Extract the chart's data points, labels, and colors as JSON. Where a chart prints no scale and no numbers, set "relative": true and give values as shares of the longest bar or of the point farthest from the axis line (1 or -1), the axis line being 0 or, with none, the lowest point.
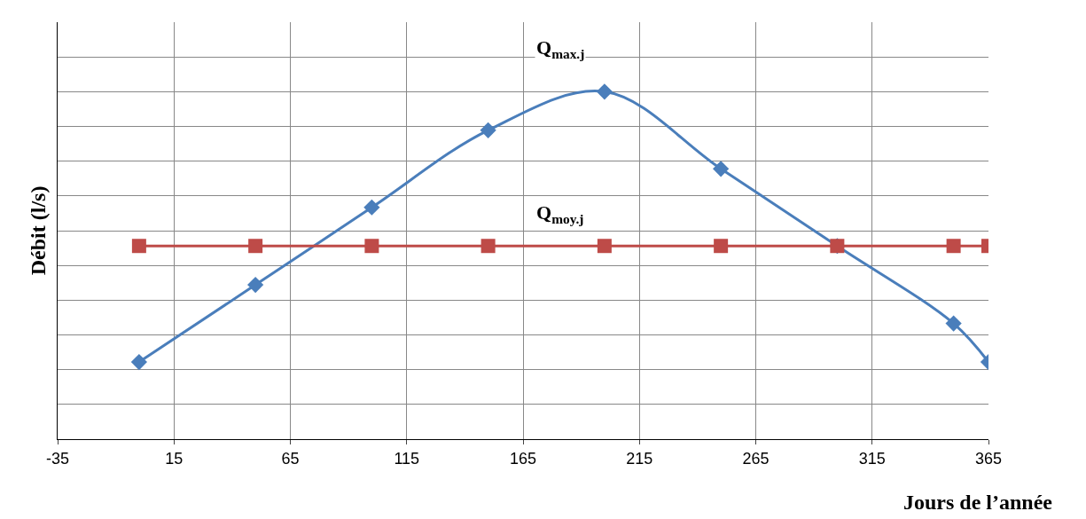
{
  "chart_data": {
    "type": "line",
    "relative": true,
    "xlabel": "Jours de l’année",
    "ylabel": "Débit (l/s)",
    "xlim": [
      -35,
      365
    ],
    "xticks": [
      -35,
      15,
      65,
      115,
      165,
      215,
      265,
      315,
      365
    ],
    "grid": true,
    "legend": false,
    "series": [
      {
        "name": "Q$_{max.j}$",
        "color": "#4a7ebb",
        "marker": "diamond",
        "x": [
          0,
          50,
          100,
          150,
          200,
          250,
          300,
          350,
          365
        ],
        "values": [
          0.222,
          0.444,
          0.667,
          0.889,
          1,
          0.778,
          0.556,
          0.333,
          0.222
        ]
      },
      {
        "name": "Q$_{moy.j}$",
        "color": "#be4b48",
        "marker": "square",
        "x": [
          0,
          50,
          100,
          150,
          200,
          250,
          300,
          350,
          365
        ],
        "values": [
          0.556,
          0.556,
          0.556,
          0.556,
          0.556,
          0.556,
          0.556,
          0.556,
          0.556
        ]
      }
    ]
  }
}
